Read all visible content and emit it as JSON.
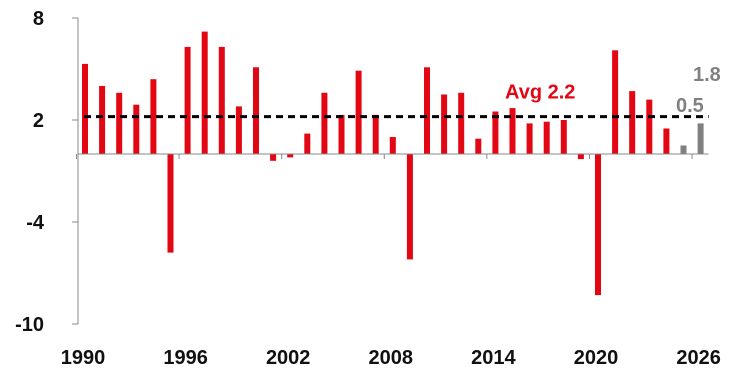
{
  "chart_data": {
    "type": "bar",
    "title": "",
    "xlabel": "",
    "ylabel": "",
    "ylim": [
      -10,
      8
    ],
    "yticks": [
      8,
      2,
      -4,
      -10
    ],
    "xticks": [
      1990,
      1996,
      2002,
      2008,
      2014,
      2020,
      2026
    ],
    "grid": false,
    "legend": "none",
    "colors": {
      "actual": "#e30613",
      "forecast": "#808080",
      "average_line": "#000000",
      "axis": "#888888"
    },
    "series": [
      {
        "values": [
          {
            "x": 1990,
            "y": 5.3
          },
          {
            "x": 1991,
            "y": 4.0
          },
          {
            "x": 1992,
            "y": 3.6
          },
          {
            "x": 1993,
            "y": 2.9
          },
          {
            "x": 1994,
            "y": 4.4
          },
          {
            "x": 1995,
            "y": -5.8
          },
          {
            "x": 1996,
            "y": 6.3
          },
          {
            "x": 1997,
            "y": 7.2
          },
          {
            "x": 1998,
            "y": 6.3
          },
          {
            "x": 1999,
            "y": 2.8
          },
          {
            "x": 2000,
            "y": 5.1
          },
          {
            "x": 2001,
            "y": -0.4
          },
          {
            "x": 2002,
            "y": -0.2
          },
          {
            "x": 2003,
            "y": 1.2
          },
          {
            "x": 2004,
            "y": 3.6
          },
          {
            "x": 2005,
            "y": 2.3
          },
          {
            "x": 2006,
            "y": 4.9
          },
          {
            "x": 2007,
            "y": 2.3
          },
          {
            "x": 2008,
            "y": 1.0
          },
          {
            "x": 2009,
            "y": -6.2
          },
          {
            "x": 2010,
            "y": 5.1
          },
          {
            "x": 2011,
            "y": 3.5
          },
          {
            "x": 2012,
            "y": 3.6
          },
          {
            "x": 2013,
            "y": 0.9
          },
          {
            "x": 2014,
            "y": 2.5
          },
          {
            "x": 2015,
            "y": 2.7
          },
          {
            "x": 2016,
            "y": 1.8
          },
          {
            "x": 2017,
            "y": 1.9
          },
          {
            "x": 2018,
            "y": 2.0
          },
          {
            "x": 2019,
            "y": -0.3
          },
          {
            "x": 2020,
            "y": -8.3
          },
          {
            "x": 2021,
            "y": 6.1
          },
          {
            "x": 2022,
            "y": 3.7
          },
          {
            "x": 2023,
            "y": 3.2
          },
          {
            "x": 2024,
            "y": 1.5
          }
        ],
        "color": "#e30613"
      },
      {
        "values": [
          {
            "x": 2025,
            "y": 0.5
          },
          {
            "x": 2026,
            "y": 1.8
          }
        ],
        "color": "#808080"
      }
    ],
    "average": {
      "value": 2.2,
      "label": "Avg 2.2"
    },
    "annotations": [
      {
        "text": "1.8",
        "x": 2026,
        "color": "#808080"
      },
      {
        "text": "0.5",
        "x": 2025,
        "color": "#808080"
      }
    ]
  }
}
